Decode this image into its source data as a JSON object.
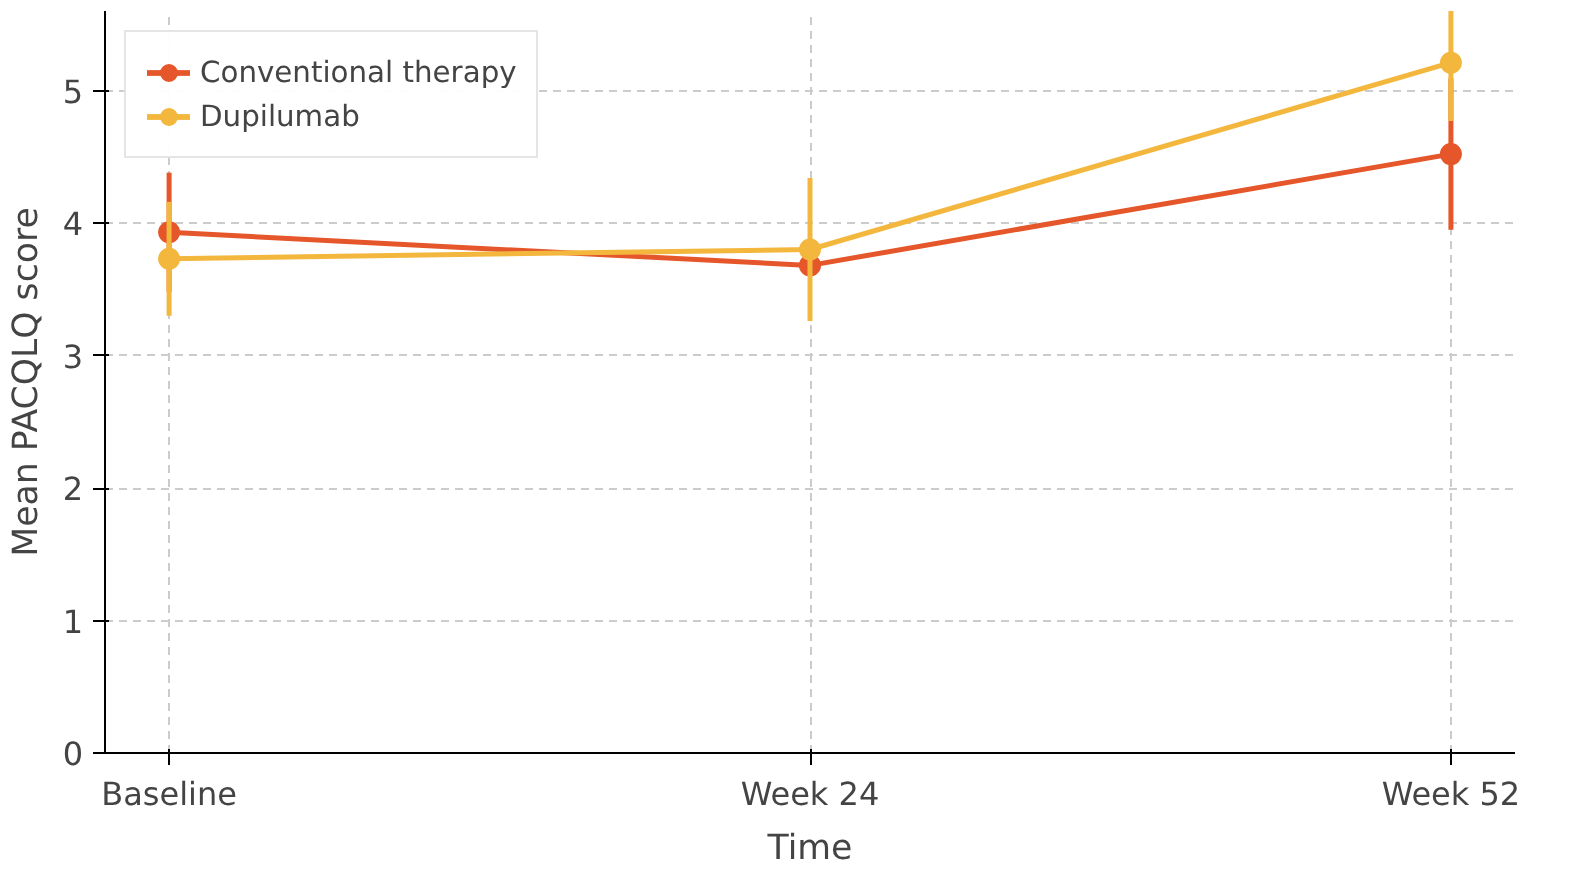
{
  "chart_data": {
    "type": "line",
    "xlabel": "Time",
    "ylabel": "Mean PACQLQ score",
    "categories": [
      "Baseline",
      "Week 24",
      "Week 52"
    ],
    "series": [
      {
        "name": "Conventional therapy",
        "color": "#e5562a",
        "values": [
          3.93,
          3.68,
          4.52
        ],
        "errors": [
          0.45,
          null,
          0.57
        ]
      },
      {
        "name": "Dupilumab",
        "color": "#f3b73e",
        "values": [
          3.73,
          3.8,
          5.21
        ],
        "errors": [
          0.43,
          0.54,
          0.44
        ]
      }
    ],
    "ylim": [
      0,
      5.6
    ],
    "yticks": [
      0,
      1,
      2,
      3,
      4,
      5
    ],
    "grid": true,
    "legend": "top left",
    "marker": "circle",
    "line_style": "solid"
  }
}
